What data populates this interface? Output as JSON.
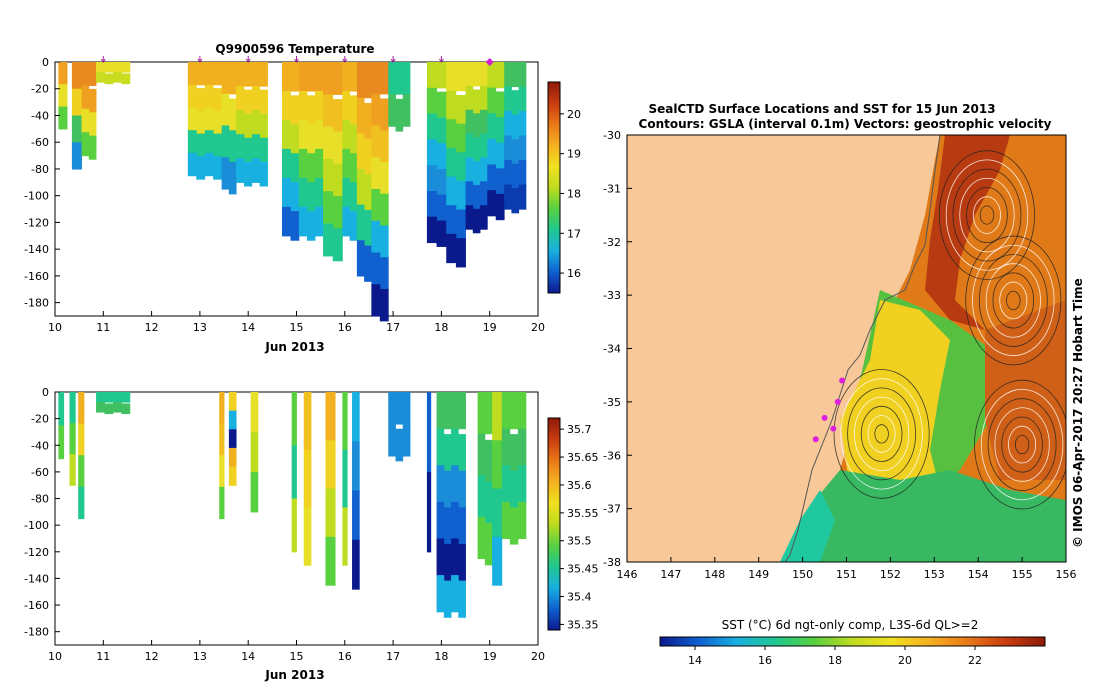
{
  "chart_data": [
    {
      "type": "heatmap",
      "title": "Q9900596  Temperature",
      "xlabel": "Jun 2013",
      "ylabel": "",
      "x_ticks": [
        "10",
        "11",
        "12",
        "13",
        "14",
        "15",
        "16",
        "17",
        "18",
        "19",
        "20"
      ],
      "y_ticks": [
        "0",
        "-20",
        "-40",
        "-60",
        "-80",
        "-100",
        "-120",
        "-140",
        "-160",
        "-180"
      ],
      "xlim": [
        10,
        20
      ],
      "ylim": [
        -190,
        0
      ],
      "colorbar": {
        "range": [
          15.5,
          20.8
        ],
        "ticks": [
          "16",
          "17",
          "18",
          "19",
          "20"
        ],
        "colors": [
          "#0a1a8c",
          "#1060d0",
          "#18b0e0",
          "#20c890",
          "#58d040",
          "#c0dc20",
          "#f0e020",
          "#f5b020",
          "#e87818",
          "#c83c10",
          "#8c1a08"
        ]
      },
      "profile_markers": [
        11,
        13,
        14,
        15,
        16,
        17,
        18,
        19
      ],
      "profiles": [
        {
          "x0": 10.07,
          "x1": 10.25,
          "bottom": -50,
          "colors": [
            "#f0a020",
            "#e8e028",
            "#58d040"
          ]
        },
        {
          "x0": 10.35,
          "x1": 10.55,
          "bottom": -80,
          "colors": [
            "#e88a20",
            "#f0d020",
            "#40c060",
            "#1a8cd8"
          ]
        },
        {
          "x0": 10.55,
          "x1": 10.85,
          "bottom": -70,
          "colors": [
            "#e88a20",
            "#f0a020",
            "#e8e028",
            "#58d040"
          ]
        },
        {
          "x0": 10.85,
          "x1": 11.55,
          "bottom": -15,
          "colors": [
            "#e8e028",
            "#c8dc20"
          ]
        },
        {
          "x0": 12.75,
          "x1": 13.45,
          "bottom": -85,
          "colors": [
            "#f0b020",
            "#f0d020",
            "#e8e028",
            "#20c890",
            "#18b0e0"
          ]
        },
        {
          "x0": 13.45,
          "x1": 13.75,
          "bottom": -95,
          "colors": [
            "#f0b020",
            "#e8e028",
            "#20c890",
            "#1a8cd8"
          ]
        },
        {
          "x0": 13.75,
          "x1": 14.4,
          "bottom": -90,
          "colors": [
            "#f0b020",
            "#f0d020",
            "#c0dc20",
            "#20c890",
            "#18b0e0"
          ]
        },
        {
          "x0": 14.7,
          "x1": 15.05,
          "bottom": -130,
          "colors": [
            "#f0b020",
            "#f0d020",
            "#c0dc20",
            "#20c890",
            "#18b0e0",
            "#1060d0"
          ]
        },
        {
          "x0": 15.05,
          "x1": 15.55,
          "bottom": -130,
          "colors": [
            "#f0a020",
            "#f0d020",
            "#e8e028",
            "#58d040",
            "#20c890",
            "#18b0e0"
          ]
        },
        {
          "x0": 15.55,
          "x1": 15.95,
          "bottom": -145,
          "colors": [
            "#f0a020",
            "#f0c020",
            "#e8e028",
            "#c0dc20",
            "#58d040",
            "#20c890"
          ]
        },
        {
          "x0": 15.95,
          "x1": 16.25,
          "bottom": -130,
          "colors": [
            "#f0b020",
            "#f0d020",
            "#c0dc20",
            "#58d040",
            "#20c890",
            "#18b0e0"
          ]
        },
        {
          "x0": 16.25,
          "x1": 16.55,
          "bottom": -160,
          "colors": [
            "#e88a20",
            "#f0b020",
            "#f0d020",
            "#c0dc20",
            "#20c890",
            "#1060d0"
          ]
        },
        {
          "x0": 16.55,
          "x1": 16.9,
          "bottom": -190,
          "colors": [
            "#e88a20",
            "#f0a020",
            "#f0c020",
            "#e8e028",
            "#58d040",
            "#18b0e0",
            "#1060d0",
            "#0a1a8c"
          ]
        },
        {
          "x0": 16.9,
          "x1": 17.35,
          "bottom": -48,
          "colors": [
            "#20c890",
            "#40c060"
          ]
        },
        {
          "x0": 17.7,
          "x1": 18.1,
          "bottom": -135,
          "colors": [
            "#c0dc20",
            "#58d040",
            "#20c890",
            "#18b0e0",
            "#1a8cd8",
            "#1060d0",
            "#0a1a8c"
          ]
        },
        {
          "x0": 18.1,
          "x1": 18.5,
          "bottom": -150,
          "colors": [
            "#e8e028",
            "#c0dc20",
            "#58d040",
            "#20c890",
            "#18b0e0",
            "#1060d0",
            "#0a1a8c"
          ]
        },
        {
          "x0": 18.5,
          "x1": 18.95,
          "bottom": -125,
          "colors": [
            "#e8e028",
            "#c0dc20",
            "#40c060",
            "#20c890",
            "#18b0e0",
            "#1060d0",
            "#0a1a8c"
          ]
        },
        {
          "x0": 18.95,
          "x1": 19.3,
          "bottom": -115,
          "colors": [
            "#c0dc20",
            "#58d040",
            "#20c890",
            "#18b0e0",
            "#1060d0",
            "#0a1a8c"
          ]
        },
        {
          "x0": 19.3,
          "x1": 19.75,
          "bottom": -110,
          "colors": [
            "#40c060",
            "#20c890",
            "#18b0e0",
            "#1a8cd8",
            "#1060d0",
            "#0a3cb0"
          ]
        }
      ]
    },
    {
      "type": "heatmap",
      "title": "",
      "xlabel": "Jun 2013",
      "ylabel": "",
      "x_ticks": [
        "10",
        "11",
        "12",
        "13",
        "14",
        "15",
        "16",
        "17",
        "18",
        "19",
        "20"
      ],
      "y_ticks": [
        "0",
        "-20",
        "-40",
        "-60",
        "-80",
        "-100",
        "-120",
        "-140",
        "-160",
        "-180"
      ],
      "xlim": [
        10,
        20
      ],
      "ylim": [
        -190,
        0
      ],
      "colorbar": {
        "range": [
          35.34,
          35.72
        ],
        "ticks": [
          "35.7",
          "35.65",
          "35.6",
          "35.55",
          "35.5",
          "35.45",
          "35.4",
          "35.35"
        ],
        "colors": [
          "#0a1a8c",
          "#1060d0",
          "#18b0e0",
          "#20c890",
          "#58d040",
          "#c0dc20",
          "#f0e020",
          "#f5b020",
          "#e87818",
          "#c83c10",
          "#8c1a08"
        ]
      },
      "profiles": [
        {
          "x0": 10.07,
          "x1": 10.18,
          "bottom": -50,
          "colors": [
            "#20c890",
            "#58d040"
          ]
        },
        {
          "x0": 10.3,
          "x1": 10.42,
          "bottom": -70,
          "colors": [
            "#20c890",
            "#58d040",
            "#c0dc20"
          ]
        },
        {
          "x0": 10.48,
          "x1": 10.6,
          "bottom": -95,
          "colors": [
            "#f0b020",
            "#f0d020",
            "#58d040",
            "#20c890"
          ]
        },
        {
          "x0": 10.85,
          "x1": 11.55,
          "bottom": -15,
          "colors": [
            "#20c890",
            "#40c060"
          ]
        },
        {
          "x0": 13.4,
          "x1": 13.5,
          "bottom": -95,
          "colors": [
            "#f0b020",
            "#f0c020",
            "#e8e028",
            "#58d040"
          ]
        },
        {
          "x0": 13.6,
          "x1": 13.75,
          "bottom": -70,
          "colors": [
            "#f0d020",
            "#18b0e0",
            "#0a1a8c",
            "#f0b020",
            "#f0d020"
          ]
        },
        {
          "x0": 14.05,
          "x1": 14.2,
          "bottom": -90,
          "colors": [
            "#e8e028",
            "#c0dc20",
            "#58d040"
          ]
        },
        {
          "x0": 14.9,
          "x1": 15.0,
          "bottom": -120,
          "colors": [
            "#58d040",
            "#20c890",
            "#c0dc20"
          ]
        },
        {
          "x0": 15.15,
          "x1": 15.3,
          "bottom": -130,
          "colors": [
            "#f0c020",
            "#f0d020",
            "#e8e028"
          ]
        },
        {
          "x0": 15.6,
          "x1": 15.8,
          "bottom": -145,
          "colors": [
            "#f0b020",
            "#f0d020",
            "#c0dc20",
            "#58d040"
          ]
        },
        {
          "x0": 15.95,
          "x1": 16.05,
          "bottom": -130,
          "colors": [
            "#58d040",
            "#20c890",
            "#c0dc20"
          ]
        },
        {
          "x0": 16.15,
          "x1": 16.3,
          "bottom": -148,
          "colors": [
            "#18b0e0",
            "#1a8cd8",
            "#1060d0",
            "#0a1a8c"
          ]
        },
        {
          "x0": 16.9,
          "x1": 17.35,
          "bottom": -48,
          "colors": [
            "#1a8cd8",
            "#1a8cd8"
          ]
        },
        {
          "x0": 17.7,
          "x1": 17.78,
          "bottom": -120,
          "colors": [
            "#1060d0",
            "#0a1a8c"
          ]
        },
        {
          "x0": 17.9,
          "x1": 18.5,
          "bottom": -165,
          "colors": [
            "#40c060",
            "#20c890",
            "#1a8cd8",
            "#1060d0",
            "#0a1a8c",
            "#18b0e0"
          ]
        },
        {
          "x0": 18.75,
          "x1": 19.05,
          "bottom": -125,
          "colors": [
            "#58d040",
            "#40c060",
            "#20c890",
            "#58d040"
          ]
        },
        {
          "x0": 19.05,
          "x1": 19.25,
          "bottom": -145,
          "colors": [
            "#c0dc20",
            "#58d040",
            "#20c890",
            "#18b0e0"
          ]
        },
        {
          "x0": 19.25,
          "x1": 19.75,
          "bottom": -110,
          "colors": [
            "#58d040",
            "#40c060",
            "#20c890",
            "#58d040"
          ]
        }
      ]
    },
    {
      "type": "heatmap",
      "title": "SealCTD Surface Locations and SST for 15 Jun 2013",
      "subtitle": "Contours: GSLA (interval 0.1m)  Vectors: geostrophic velocity",
      "xlabel": "",
      "ylabel": "",
      "x_ticks": [
        "146",
        "147",
        "148",
        "149",
        "150",
        "151",
        "152",
        "153",
        "154",
        "155",
        "156"
      ],
      "y_ticks": [
        "-30",
        "-31",
        "-32",
        "-33",
        "-34",
        "-35",
        "-36",
        "-37",
        "-38"
      ],
      "xlim": [
        146,
        156
      ],
      "ylim": [
        -38,
        -30
      ],
      "land_color": "#f8c898",
      "colorbar": {
        "label": "SST (°C) 6d ngt-only comp, L3S-6d QL>=2",
        "range": [
          13,
          24
        ],
        "ticks": [
          "14",
          "16",
          "18",
          "20",
          "22"
        ],
        "colors": [
          "#0a1a8c",
          "#1060d0",
          "#18b0e0",
          "#20c890",
          "#58d040",
          "#c0dc20",
          "#f0e020",
          "#f5b020",
          "#e87818",
          "#c83c10",
          "#8c1a08"
        ]
      },
      "seal_locations": [
        {
          "lon": 150.3,
          "lat": -35.7
        },
        {
          "lon": 150.5,
          "lat": -35.3
        },
        {
          "lon": 150.8,
          "lat": -35.0
        },
        {
          "lon": 150.9,
          "lat": -34.6
        },
        {
          "lon": 150.7,
          "lat": -35.5
        }
      ],
      "eddies": [
        {
          "lon": 151.8,
          "lat": -35.6
        },
        {
          "lon": 155.0,
          "lat": -35.8
        },
        {
          "lon": 154.8,
          "lat": -33.1
        },
        {
          "lon": 154.2,
          "lat": -31.5
        }
      ]
    }
  ],
  "side_label": "© IMOS 06-Apr-2017 20:27 Hobart Time"
}
